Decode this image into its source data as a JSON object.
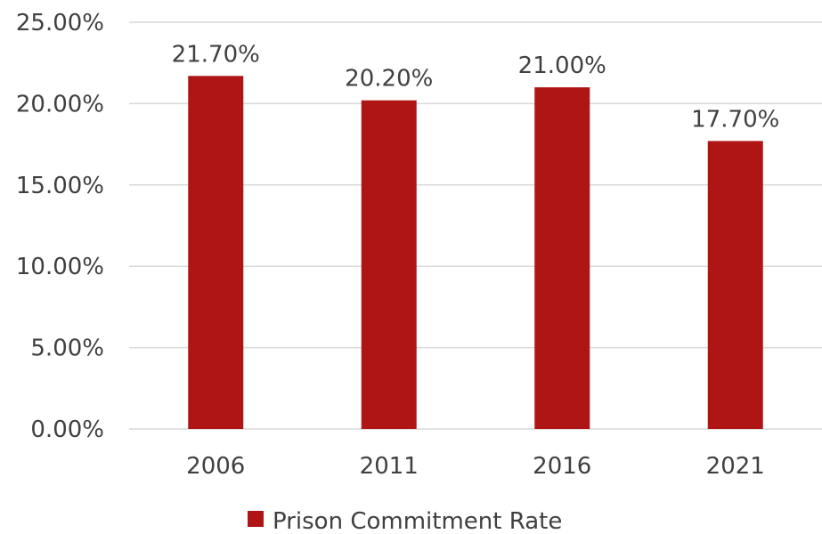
{
  "chart_data": {
    "type": "bar",
    "categories": [
      "2006",
      "2011",
      "2016",
      "2021"
    ],
    "series": [
      {
        "name": "Prison Commitment Rate",
        "values": [
          21.7,
          20.2,
          21.0,
          17.7
        ],
        "color": "#B01515"
      }
    ],
    "data_labels": [
      "21.70%",
      "20.20%",
      "21.00%",
      "17.70%"
    ],
    "y_ticks": [
      "0.00%",
      "5.00%",
      "10.00%",
      "15.00%",
      "20.00%",
      "25.00%"
    ],
    "y_tick_values": [
      0,
      5,
      10,
      15,
      20,
      25
    ],
    "ylim": [
      0,
      25
    ],
    "grid": true,
    "legend_position": "bottom",
    "colors": {
      "grid": "#D9D9D9",
      "text": "#404040"
    }
  }
}
